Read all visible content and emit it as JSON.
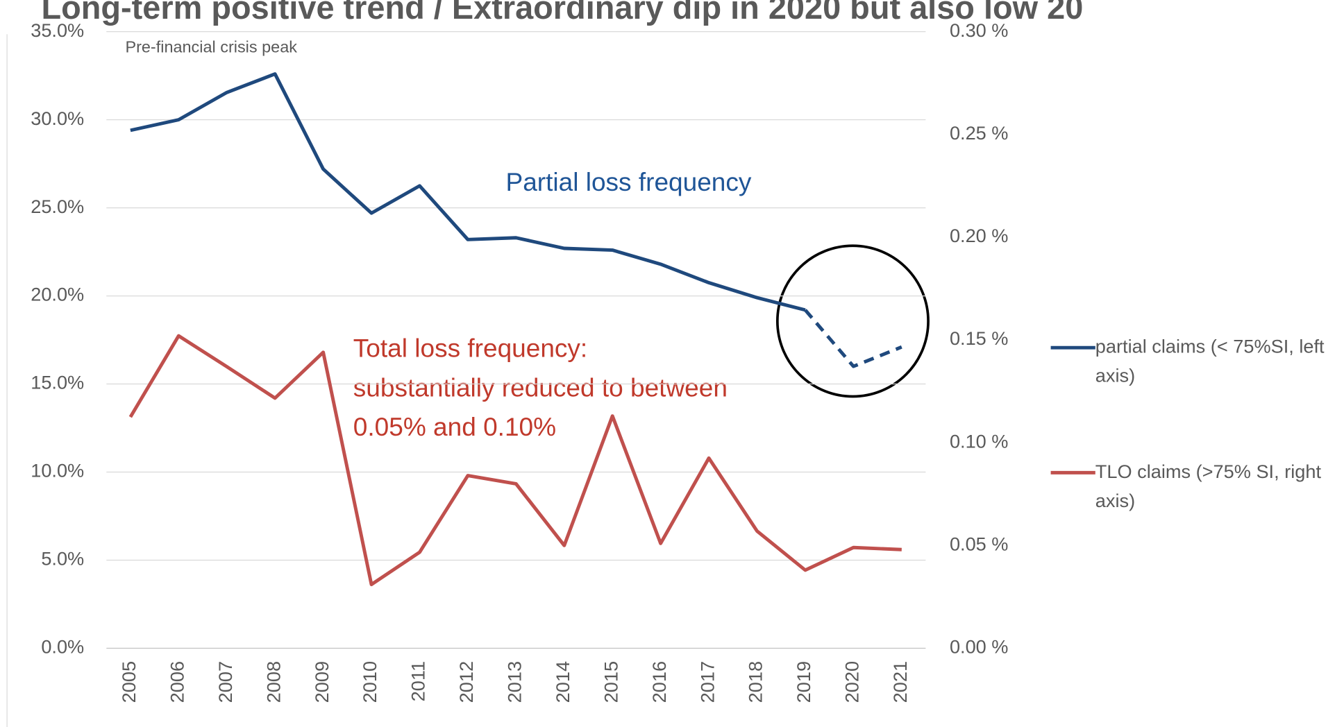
{
  "chart_data": {
    "type": "line",
    "title": "Long-term positive trend / Extraordinary dip in 2020 but also low 20",
    "categories": [
      "2005",
      "2006",
      "2007",
      "2008",
      "2009",
      "2010",
      "2011",
      "2012",
      "2013",
      "2014",
      "2015",
      "2016",
      "2017",
      "2018",
      "2019",
      "2020",
      "2021"
    ],
    "series": [
      {
        "name": "partial claims (< 75%SI, left axis)",
        "color": "#1f497d",
        "axis": "y",
        "dashed_from": "2019",
        "values": [
          29.4,
          30.0,
          31.55,
          32.6,
          27.2,
          24.7,
          26.25,
          23.2,
          23.3,
          22.7,
          22.6,
          21.8,
          20.75,
          19.9,
          19.2,
          16.0,
          17.1
        ]
      },
      {
        "name": "TLO claims (>75% SI, right axis)",
        "color": "#c0504d",
        "axis": "y2",
        "values": [
          0.1125,
          0.152,
          0.137,
          0.1217,
          0.144,
          0.031,
          0.0467,
          0.084,
          0.08,
          0.05,
          0.113,
          0.051,
          0.0925,
          0.057,
          0.038,
          0.049,
          0.048
        ]
      }
    ],
    "ylim": [
      0,
      35
    ],
    "yticks": [
      {
        "value": 0,
        "label": "0.0%"
      },
      {
        "value": 5,
        "label": "5.0%"
      },
      {
        "value": 10,
        "label": "10.0%"
      },
      {
        "value": 15,
        "label": "15.0%"
      },
      {
        "value": 20,
        "label": "20.0%"
      },
      {
        "value": 25,
        "label": "25.0%"
      },
      {
        "value": 30,
        "label": "30.0%"
      },
      {
        "value": 35,
        "label": "35.0%"
      }
    ],
    "y2lim": [
      0,
      0.3
    ],
    "y2ticks": [
      {
        "value": 0,
        "label": "0.00 %"
      },
      {
        "value": 0.05,
        "label": "0.05 %"
      },
      {
        "value": 0.1,
        "label": "0.10 %"
      },
      {
        "value": 0.15,
        "label": "0.15 %"
      },
      {
        "value": 0.2,
        "label": "0.20 %"
      },
      {
        "value": 0.25,
        "label": "0.25 %"
      },
      {
        "value": 0.3,
        "label": "0.30 %"
      }
    ],
    "grid": true,
    "legend": "right",
    "annotations": {
      "peak": "Pre-financial crisis peak",
      "partial": "Partial loss frequency",
      "total": [
        "Total loss frequency:",
        "substantially reduced to between",
        "0.05% and 0.10%"
      ]
    }
  }
}
